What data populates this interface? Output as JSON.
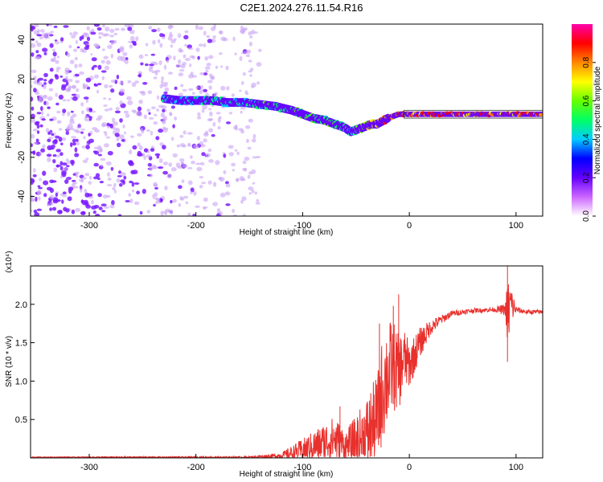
{
  "title": "C2E1.2024.276.11.54.R16",
  "chart_data": [
    {
      "type": "heatmap",
      "xlabel": "Height of straight line (km)",
      "ylabel": "Frequency (Hz)",
      "xlim": [
        -355,
        125
      ],
      "ylim": [
        -50,
        48
      ],
      "x_ticks": [
        -300,
        -200,
        -100,
        0,
        100
      ],
      "y_ticks": [
        -40,
        -20,
        0,
        20,
        40
      ],
      "colorbar": {
        "label": "Normalized spectral amplitude",
        "range": [
          0,
          1
        ],
        "ticks": [
          "0.0",
          "0.2",
          "0.4",
          "0.6",
          "0.8"
        ],
        "colors": [
          "#ffffff",
          "#cc66ff",
          "#6600ff",
          "#0000ff",
          "#00ccff",
          "#00ff66",
          "#66ff00",
          "#ffff00",
          "#ff8800",
          "#ff0000",
          "#ff00aa"
        ]
      },
      "ridge": {
        "x": [
          -230,
          -215,
          -200,
          -185,
          -170,
          -155,
          -140,
          -125,
          -110,
          -100,
          -90,
          -80,
          -70,
          -60,
          -55,
          -50,
          -45,
          -40,
          -35,
          -30,
          -20,
          -10,
          0,
          20,
          40,
          60,
          80,
          100,
          125
        ],
        "y": [
          10,
          9,
          9,
          9,
          8,
          8,
          7,
          6,
          4,
          2,
          0,
          -1,
          -3,
          -5,
          -7,
          -6,
          -5,
          -4,
          -3,
          -3,
          0,
          2,
          2,
          2,
          2,
          2,
          2,
          2,
          2
        ],
        "amplitude": [
          0.55,
          0.5,
          0.5,
          0.5,
          0.5,
          0.55,
          0.55,
          0.6,
          0.6,
          0.65,
          0.6,
          0.6,
          0.65,
          0.6,
          0.5,
          0.6,
          0.7,
          0.75,
          0.8,
          0.85,
          0.9,
          0.9,
          0.95,
          0.95,
          0.95,
          0.95,
          0.95,
          0.95,
          0.95
        ]
      },
      "noise_region_x": [
        -355,
        -140
      ]
    },
    {
      "type": "line",
      "xlabel": "Height of straight line (km)",
      "ylabel": "SNR (10 * v/v)",
      "y_multiplier": "(x10⁴)",
      "xlim": [
        -355,
        125
      ],
      "ylim": [
        0,
        2.5
      ],
      "x_ticks": [
        -300,
        -200,
        -100,
        0,
        100
      ],
      "y_ticks": [
        0.5,
        1.0,
        1.5,
        2.0
      ],
      "y_tick_labels": [
        "0.5",
        "1.0",
        "1.5",
        "2.0"
      ],
      "color": "#e8302c",
      "envelope": {
        "x": [
          -355,
          -150,
          -120,
          -100,
          -80,
          -70,
          -60,
          -50,
          -40,
          -30,
          -25,
          -20,
          -15,
          -10,
          -5,
          0,
          10,
          20,
          30,
          40,
          60,
          80,
          90,
          92,
          95,
          100,
          110,
          125
        ],
        "mean": [
          0.01,
          0.01,
          0.03,
          0.1,
          0.2,
          0.25,
          0.15,
          0.2,
          0.3,
          0.5,
          0.9,
          1.1,
          1.2,
          1.1,
          1.3,
          1.2,
          1.5,
          1.7,
          1.8,
          1.88,
          1.92,
          1.93,
          1.93,
          1.85,
          2.0,
          1.93,
          1.9,
          1.9
        ],
        "spread": [
          0.005,
          0.01,
          0.04,
          0.15,
          0.25,
          0.3,
          0.2,
          0.35,
          0.5,
          0.6,
          0.7,
          0.7,
          0.6,
          0.5,
          0.4,
          0.3,
          0.2,
          0.1,
          0.06,
          0.04,
          0.03,
          0.03,
          0.08,
          0.5,
          0.3,
          0.04,
          0.03,
          0.03
        ]
      },
      "spikes": [
        {
          "x": -10,
          "y": 2.13
        },
        {
          "x": -15,
          "y": 1.98
        },
        {
          "x": -28,
          "y": 1.75
        },
        {
          "x": -65,
          "y": 0.67
        },
        {
          "x": 92,
          "y": 2.5
        },
        {
          "x": 92,
          "y": 1.25
        }
      ]
    }
  ]
}
